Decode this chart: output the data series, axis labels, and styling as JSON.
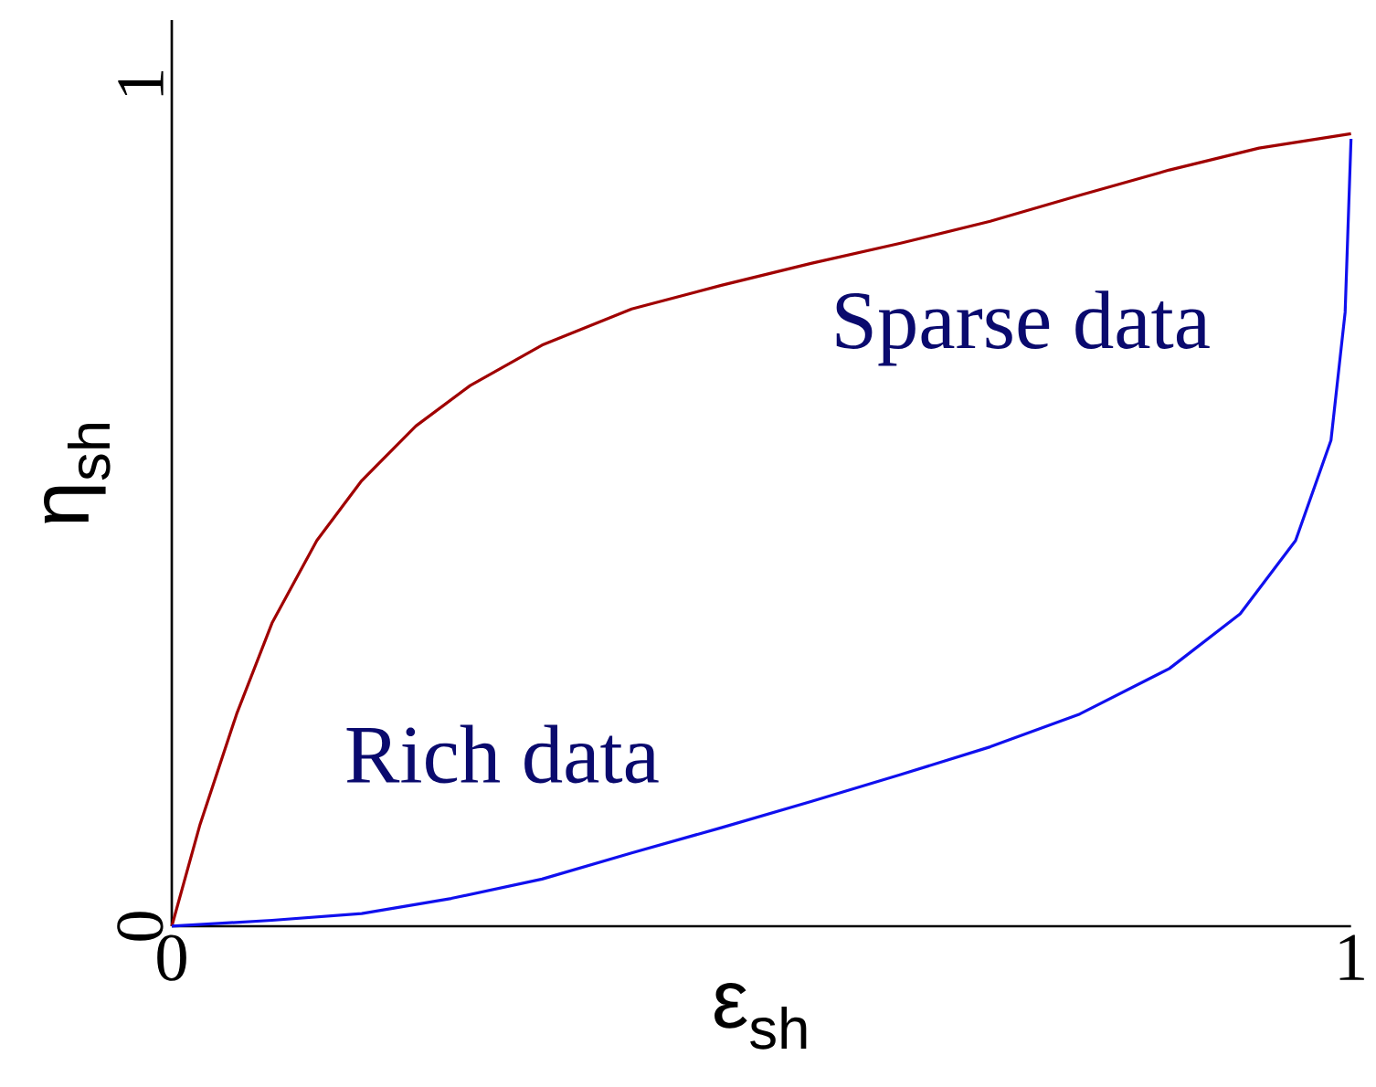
{
  "chart_data": {
    "type": "line",
    "xlabel": "ε$_{sh}$",
    "ylabel": "η$_{sh}$",
    "xlim": [
      0,
      1
    ],
    "ylim": [
      0,
      1.076
    ],
    "xticks": [
      0,
      1
    ],
    "yticks": [
      0,
      1
    ],
    "grid": false,
    "marker": "none",
    "line_style": "solid",
    "series": [
      {
        "color": "#a00000",
        "x": [
          0,
          0.024,
          0.055,
          0.085,
          0.123,
          0.161,
          0.207,
          0.253,
          0.314,
          0.39,
          0.466,
          0.542,
          0.618,
          0.694,
          0.77,
          0.846,
          0.922,
          1.0
        ],
        "values": [
          0,
          0.121,
          0.252,
          0.36,
          0.458,
          0.529,
          0.594,
          0.642,
          0.69,
          0.733,
          0.761,
          0.787,
          0.811,
          0.837,
          0.868,
          0.898,
          0.924,
          0.941
        ]
      },
      {
        "color": "#1010ee",
        "x": [
          0,
          0.085,
          0.161,
          0.237,
          0.314,
          0.39,
          0.466,
          0.542,
          0.618,
          0.694,
          0.77,
          0.846,
          0.906,
          0.953,
          0.983,
          0.995,
          1.0
        ],
        "values": [
          0,
          0.007,
          0.015,
          0.033,
          0.056,
          0.087,
          0.117,
          0.148,
          0.18,
          0.213,
          0.252,
          0.306,
          0.371,
          0.458,
          0.577,
          0.729,
          0.935
        ]
      }
    ],
    "annotations": [
      "Sparse data",
      "Rich data"
    ]
  }
}
